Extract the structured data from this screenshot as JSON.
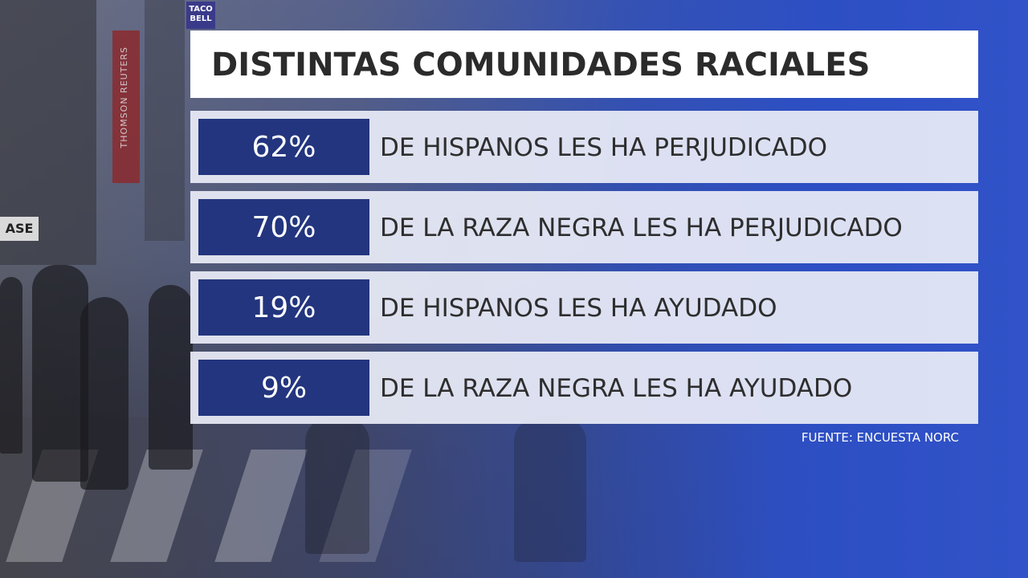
{
  "title": "DISTINTAS COMUNIDADES RACIALES",
  "background_signs": {
    "taco_bell": "TACO BELL",
    "reuters": "THOMSON REUTERS",
    "storefront": "ASE"
  },
  "rows": [
    {
      "percent": "62%",
      "value": 62,
      "text": "DE HISPANOS LES HA PERJUDICADO"
    },
    {
      "percent": "70%",
      "value": 70,
      "text": "DE LA RAZA NEGRA LES HA PERJUDICADO"
    },
    {
      "percent": "19%",
      "value": 19,
      "text": "DE HISPANOS LES HA AYUDADO"
    },
    {
      "percent": "9%",
      "value": 9,
      "text": "DE LA RAZA NEGRA LES HA AYUDADO"
    }
  ],
  "source": "FUENTE: ENCUESTA NORC",
  "colors": {
    "percent_box": "#23357e",
    "background_blue": "#3152c8",
    "row_fill": "#e9ecf6",
    "title_fill": "#ffffff",
    "text_dark": "#2e2e2e"
  }
}
